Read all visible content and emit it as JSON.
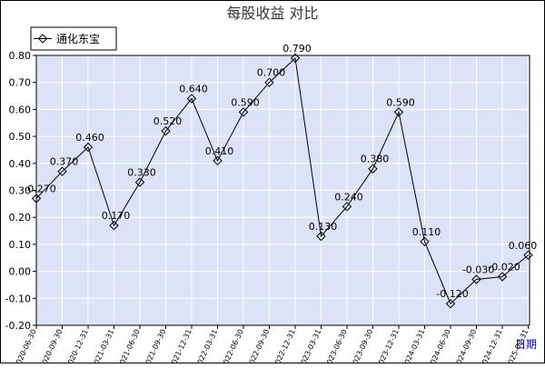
{
  "chart_data": {
    "type": "line",
    "title": "每股收益  对比",
    "xlabel": "日期",
    "ylabel": "",
    "ylim": [
      -0.2,
      0.8
    ],
    "yticks": [
      0.8,
      0.7,
      0.6,
      0.5,
      0.4,
      0.3,
      0.2,
      0.1,
      0.0,
      -0.1,
      -0.2
    ],
    "ytick_labels": [
      "0.80",
      "0.70",
      "0.60",
      "0.50",
      "0.40",
      "0.30",
      "0.20",
      "0.10",
      "0.00",
      "-0.10",
      "-0.20"
    ],
    "grid": true,
    "legend": "top-left",
    "categories": [
      "2020-06-30",
      "2020-09-30",
      "2020-12-31",
      "2021-03-31",
      "2021-06-30",
      "2021-09-30",
      "2021-12-31",
      "2022-03-31",
      "2022-06-30",
      "2022-09-30",
      "2022-12-31",
      "2023-03-31",
      "2023-06-30",
      "2023-09-30",
      "2023-12-31",
      "2024-03-31",
      "2024-06-30",
      "2024-09-30",
      "2024-12-31",
      "2025-03-31"
    ],
    "series": [
      {
        "name": "通化东宝",
        "values": [
          0.27,
          0.37,
          0.46,
          0.17,
          0.33,
          0.52,
          0.64,
          0.41,
          0.59,
          0.7,
          0.79,
          0.13,
          0.24,
          0.38,
          0.59,
          0.11,
          -0.12,
          -0.03,
          -0.02,
          0.06
        ],
        "labels": [
          "0.270",
          "0.370",
          "0.460",
          "0.170",
          "0.330",
          "0.520",
          "0.640",
          "0.410",
          "0.590",
          "0.700",
          "0.790",
          "0.130",
          "0.240",
          "0.380",
          "0.590",
          "0.110",
          "-0.120",
          "-0.030",
          "-0.020",
          "0.060"
        ],
        "color": "#000000"
      }
    ],
    "colors": {
      "plot_bg": "#dde3f7",
      "grid": "#ffffff",
      "frame": "#000000"
    }
  }
}
